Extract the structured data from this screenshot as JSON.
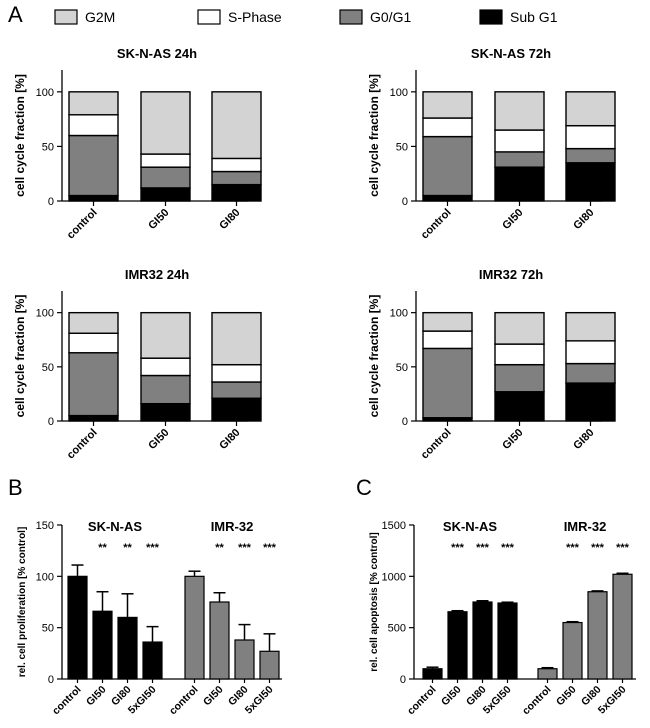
{
  "panel_labels": {
    "a": "A",
    "b": "B",
    "c": "C"
  },
  "legend": [
    {
      "label": "G2M",
      "color": "#d3d3d3"
    },
    {
      "label": "S-Phase",
      "color": "#ffffff"
    },
    {
      "label": "G0/G1",
      "color": "#808080"
    },
    {
      "label": "Sub G1",
      "color": "#000000"
    }
  ],
  "chart_data": [
    {
      "type": "bar",
      "stacked": true,
      "title": "SK-N-AS 24h",
      "ylabel": "cell cycle fraction [%]",
      "categories": [
        "control",
        "GI50",
        "GI80"
      ],
      "yticks": [
        "0",
        "50",
        "100"
      ],
      "ylim": [
        0,
        120
      ],
      "series": [
        {
          "name": "Sub G1",
          "values": [
            5,
            12,
            15
          ]
        },
        {
          "name": "G0/G1",
          "values": [
            55,
            19,
            12
          ]
        },
        {
          "name": "S-Phase",
          "values": [
            19,
            12,
            12
          ]
        },
        {
          "name": "G2M",
          "values": [
            21,
            57,
            61
          ]
        }
      ]
    },
    {
      "type": "bar",
      "stacked": true,
      "title": "SK-N-AS 72h",
      "ylabel": "cell cycle fraction [%]",
      "categories": [
        "control",
        "GI50",
        "GI80"
      ],
      "yticks": [
        "0",
        "50",
        "100"
      ],
      "ylim": [
        0,
        120
      ],
      "series": [
        {
          "name": "Sub G1",
          "values": [
            5,
            31,
            35
          ]
        },
        {
          "name": "G0/G1",
          "values": [
            54,
            14,
            13
          ]
        },
        {
          "name": "S-Phase",
          "values": [
            17,
            20,
            21
          ]
        },
        {
          "name": "G2M",
          "values": [
            24,
            35,
            31
          ]
        }
      ]
    },
    {
      "type": "bar",
      "stacked": true,
      "title": "IMR32 24h",
      "ylabel": "cell cycle fraction [%]",
      "categories": [
        "control",
        "GI50",
        "GI80"
      ],
      "yticks": [
        "0",
        "50",
        "100"
      ],
      "ylim": [
        0,
        120
      ],
      "series": [
        {
          "name": "Sub G1",
          "values": [
            5,
            16,
            21
          ]
        },
        {
          "name": "G0/G1",
          "values": [
            58,
            26,
            15
          ]
        },
        {
          "name": "S-Phase",
          "values": [
            18,
            16,
            16
          ]
        },
        {
          "name": "G2M",
          "values": [
            19,
            42,
            48
          ]
        }
      ]
    },
    {
      "type": "bar",
      "stacked": true,
      "title": "IMR32 72h",
      "ylabel": "cell cycle fraction [%]",
      "categories": [
        "control",
        "GI50",
        "GI80"
      ],
      "yticks": [
        "0",
        "50",
        "100"
      ],
      "ylim": [
        0,
        120
      ],
      "series": [
        {
          "name": "Sub G1",
          "values": [
            3,
            27,
            35
          ]
        },
        {
          "name": "G0/G1",
          "values": [
            64,
            25,
            18
          ]
        },
        {
          "name": "S-Phase",
          "values": [
            16,
            19,
            21
          ]
        },
        {
          "name": "G2M",
          "values": [
            17,
            29,
            26
          ]
        }
      ]
    },
    {
      "type": "bar",
      "ylabel": "rel. cell proliferation [% control]",
      "yticks": [
        "0",
        "50",
        "100",
        "150"
      ],
      "ylim": [
        0,
        150
      ],
      "groups": [
        {
          "label": "SK-N-AS",
          "color": "#000000",
          "categories": [
            "control",
            "GI50",
            "GI80",
            "5xGI50"
          ],
          "values": [
            100,
            66,
            60,
            36
          ],
          "errors": [
            11,
            19,
            23,
            15
          ],
          "significance": [
            "",
            "**",
            "**",
            "***"
          ]
        },
        {
          "label": "IMR-32",
          "color": "#808080",
          "categories": [
            "control",
            "GI50",
            "GI80",
            "5xGI50"
          ],
          "values": [
            100,
            75,
            38,
            27
          ],
          "errors": [
            5,
            9,
            15,
            17
          ],
          "significance": [
            "",
            "**",
            "***",
            "***"
          ]
        }
      ]
    },
    {
      "type": "bar",
      "ylabel": "rel. cell apoptosis [% control]",
      "yticks": [
        "0",
        "500",
        "1000",
        "1500"
      ],
      "ylim": [
        0,
        1500
      ],
      "groups": [
        {
          "label": "SK-N-AS",
          "color": "#000000",
          "categories": [
            "control",
            "GI50",
            "GI80",
            "5xGI50"
          ],
          "values": [
            100,
            655,
            750,
            740
          ],
          "errors": [
            15,
            10,
            12,
            8
          ],
          "significance": [
            "",
            "***",
            "***",
            "***"
          ]
        },
        {
          "label": "IMR-32",
          "color": "#808080",
          "categories": [
            "control",
            "GI50",
            "GI80",
            "5xGI50"
          ],
          "values": [
            100,
            550,
            850,
            1020
          ],
          "errors": [
            10,
            8,
            8,
            10
          ],
          "significance": [
            "",
            "***",
            "***",
            "***"
          ]
        }
      ]
    }
  ]
}
